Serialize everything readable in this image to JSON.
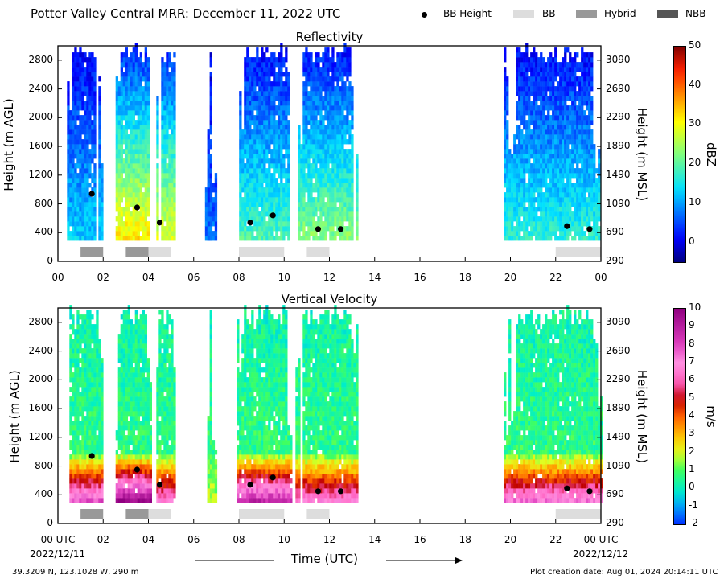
{
  "header": {
    "title": "Potter Valley Central MRR:  December 11, 2022 UTC"
  },
  "legend": {
    "items": [
      {
        "label": "BB Height",
        "kind": "dot",
        "color": "#000000"
      },
      {
        "label": "BB",
        "kind": "swatch",
        "color": "#dddddd"
      },
      {
        "label": "Hybrid",
        "kind": "swatch",
        "color": "#999999"
      },
      {
        "label": "NBB",
        "kind": "swatch",
        "color": "#555555"
      }
    ]
  },
  "x_axis": {
    "label": "Time (UTC)",
    "ticks": [
      "00",
      "02",
      "04",
      "06",
      "08",
      "10",
      "12",
      "14",
      "16",
      "18",
      "20",
      "22",
      "00"
    ],
    "bottom_ticks": [
      "00 UTC",
      "02",
      "04",
      "06",
      "08",
      "10",
      "12",
      "14",
      "16",
      "18",
      "20",
      "22",
      "00 UTC"
    ],
    "start_date": "2022/12/11",
    "end_date": "2022/12/12"
  },
  "footer": {
    "location": "39.3209 N, 123.1028 W, 290 m",
    "creation": "Plot creation date: Aug 01, 2024 20:14:11 UTC"
  },
  "chart_data": [
    {
      "type": "heatmap",
      "title": "Reflectivity",
      "ylabel": "Height (m AGL)",
      "ylabel_right": "Height (m MSL)",
      "x_unit": "hours UTC",
      "xlim": [
        0,
        24
      ],
      "ylim": [
        0,
        3000
      ],
      "yticks_left": [
        "0",
        "400",
        "800",
        "1200",
        "1600",
        "2000",
        "2400",
        "2800"
      ],
      "yticks_right": [
        "290",
        "690",
        "1090",
        "1490",
        "1890",
        "2290",
        "2690",
        "3090"
      ],
      "colorbar": {
        "label": "dBZ",
        "min": -5,
        "max": 50,
        "ticks": [
          "0",
          "10",
          "20",
          "30",
          "40",
          "50"
        ],
        "colormap": "jet"
      },
      "precip_periods": [
        {
          "start": 0.4,
          "end": 1.9,
          "top": 3000,
          "peak": 14
        },
        {
          "start": 2.55,
          "end": 4.05,
          "top": 3000,
          "peak": 33
        },
        {
          "start": 4.35,
          "end": 5.15,
          "top": 3000,
          "peak": 30
        },
        {
          "start": 6.6,
          "end": 6.8,
          "top": 3000,
          "peak": 8
        },
        {
          "start": 6.5,
          "end": 7.0,
          "top": 1200,
          "peak": 8
        },
        {
          "start": 7.9,
          "end": 10.3,
          "top": 3000,
          "peak": 20
        },
        {
          "start": 10.5,
          "end": 13.2,
          "top": 3000,
          "peak": 24
        },
        {
          "start": 19.7,
          "end": 24.0,
          "top": 3000,
          "peak": 18
        }
      ],
      "bright_band_heights": [
        {
          "time": 1.5,
          "height": 940
        },
        {
          "time": 3.5,
          "height": 750
        },
        {
          "time": 4.5,
          "height": 540
        },
        {
          "time": 8.5,
          "height": 540
        },
        {
          "time": 9.5,
          "height": 640
        },
        {
          "time": 11.5,
          "height": 450
        },
        {
          "time": 12.5,
          "height": 450
        },
        {
          "time": 22.5,
          "height": 490
        },
        {
          "time": 23.5,
          "height": 450
        }
      ],
      "bb_type_segments": [
        {
          "start": 1.0,
          "end": 2.0,
          "type": "Hybrid"
        },
        {
          "start": 3.0,
          "end": 4.0,
          "type": "Hybrid"
        },
        {
          "start": 4.0,
          "end": 5.0,
          "type": "BB"
        },
        {
          "start": 8.0,
          "end": 10.0,
          "type": "BB"
        },
        {
          "start": 11.0,
          "end": 12.0,
          "type": "BB"
        },
        {
          "start": 22.0,
          "end": 24.0,
          "type": "BB"
        }
      ]
    },
    {
      "type": "heatmap",
      "title": "Vertical Velocity",
      "ylabel": "Height (m AGL)",
      "ylabel_right": "Height (m MSL)",
      "x_unit": "hours UTC",
      "xlim": [
        0,
        24
      ],
      "ylim": [
        0,
        3000
      ],
      "yticks_left": [
        "0",
        "400",
        "800",
        "1200",
        "1600",
        "2000",
        "2400",
        "2800"
      ],
      "yticks_right": [
        "290",
        "690",
        "1090",
        "1490",
        "1890",
        "2290",
        "2690",
        "3090"
      ],
      "colorbar": {
        "label": "m/s",
        "min": -2,
        "max": 10,
        "ticks": [
          "-2",
          "-1",
          "0",
          "1",
          "2",
          "3",
          "4",
          "5",
          "6",
          "7",
          "8",
          "9",
          "10"
        ],
        "colormap": "velocity"
      },
      "precip_periods": [
        {
          "start": 0.4,
          "end": 1.9,
          "top": 3000,
          "peak": 7
        },
        {
          "start": 2.55,
          "end": 4.05,
          "top": 3000,
          "peak": 9
        },
        {
          "start": 4.35,
          "end": 5.15,
          "top": 3000,
          "peak": 6
        },
        {
          "start": 6.6,
          "end": 6.8,
          "top": 3000,
          "peak": 1
        },
        {
          "start": 6.5,
          "end": 7.0,
          "top": 1200,
          "peak": 1
        },
        {
          "start": 7.9,
          "end": 10.3,
          "top": 3000,
          "peak": 8
        },
        {
          "start": 10.5,
          "end": 13.2,
          "top": 3000,
          "peak": 6
        },
        {
          "start": 19.7,
          "end": 24.0,
          "top": 3000,
          "peak": 6.5
        }
      ],
      "bright_band_heights": [
        {
          "time": 1.5,
          "height": 940
        },
        {
          "time": 3.5,
          "height": 750
        },
        {
          "time": 4.5,
          "height": 540
        },
        {
          "time": 8.5,
          "height": 540
        },
        {
          "time": 9.5,
          "height": 640
        },
        {
          "time": 11.5,
          "height": 450
        },
        {
          "time": 12.5,
          "height": 450
        },
        {
          "time": 22.5,
          "height": 490
        },
        {
          "time": 23.5,
          "height": 450
        }
      ],
      "bb_type_segments": [
        {
          "start": 1.0,
          "end": 2.0,
          "type": "Hybrid"
        },
        {
          "start": 3.0,
          "end": 4.0,
          "type": "Hybrid"
        },
        {
          "start": 4.0,
          "end": 5.0,
          "type": "BB"
        },
        {
          "start": 8.0,
          "end": 10.0,
          "type": "BB"
        },
        {
          "start": 11.0,
          "end": 12.0,
          "type": "BB"
        },
        {
          "start": 22.0,
          "end": 24.0,
          "type": "BB"
        }
      ]
    }
  ]
}
